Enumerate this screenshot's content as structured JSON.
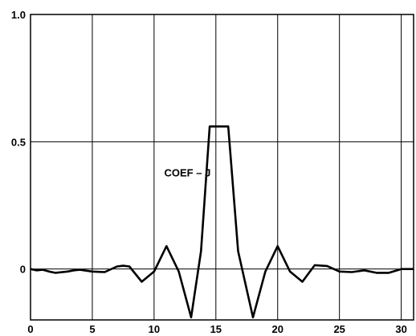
{
  "chart_data": {
    "type": "line",
    "title": "",
    "xlabel": "",
    "ylabel": "",
    "xlim": [
      0,
      31
    ],
    "ylim": [
      -0.2,
      1.0
    ],
    "grid": true,
    "x_ticks": [
      {
        "value": 0,
        "label": "0"
      },
      {
        "value": 5,
        "label": "5"
      },
      {
        "value": 10,
        "label": "10"
      },
      {
        "value": 15,
        "label": "15"
      },
      {
        "value": 20,
        "label": "20"
      },
      {
        "value": 25,
        "label": "25"
      },
      {
        "value": 30,
        "label": "30"
      }
    ],
    "y_ticks": [
      {
        "value": 0,
        "label": "0"
      },
      {
        "value": 0.5,
        "label": "0.5"
      },
      {
        "value": 1.0,
        "label": "1.0"
      }
    ],
    "annotations": [
      {
        "text": "COEF – J",
        "x": 12.7,
        "y": 0.38
      }
    ],
    "series": [
      {
        "x": [
          0,
          0.5,
          1,
          1.5,
          2,
          3,
          3.5,
          4,
          5,
          6,
          7,
          7.5,
          8,
          9,
          10,
          11,
          12,
          13,
          13.8,
          14.5,
          15.3,
          16,
          16.8,
          18,
          19,
          20,
          21,
          22,
          23,
          24,
          25,
          26,
          27,
          28,
          29,
          30,
          31
        ],
        "y": [
          0.0,
          -0.005,
          -0.003,
          -0.01,
          -0.015,
          -0.01,
          -0.005,
          -0.003,
          -0.01,
          -0.012,
          0.01,
          0.013,
          0.01,
          -0.05,
          -0.01,
          0.09,
          -0.01,
          -0.19,
          0.07,
          0.56,
          0.56,
          0.56,
          0.07,
          -0.19,
          -0.01,
          0.09,
          -0.01,
          -0.05,
          0.015,
          0.012,
          -0.01,
          -0.012,
          -0.005,
          -0.015,
          -0.015,
          0.0,
          0.0
        ]
      }
    ]
  }
}
